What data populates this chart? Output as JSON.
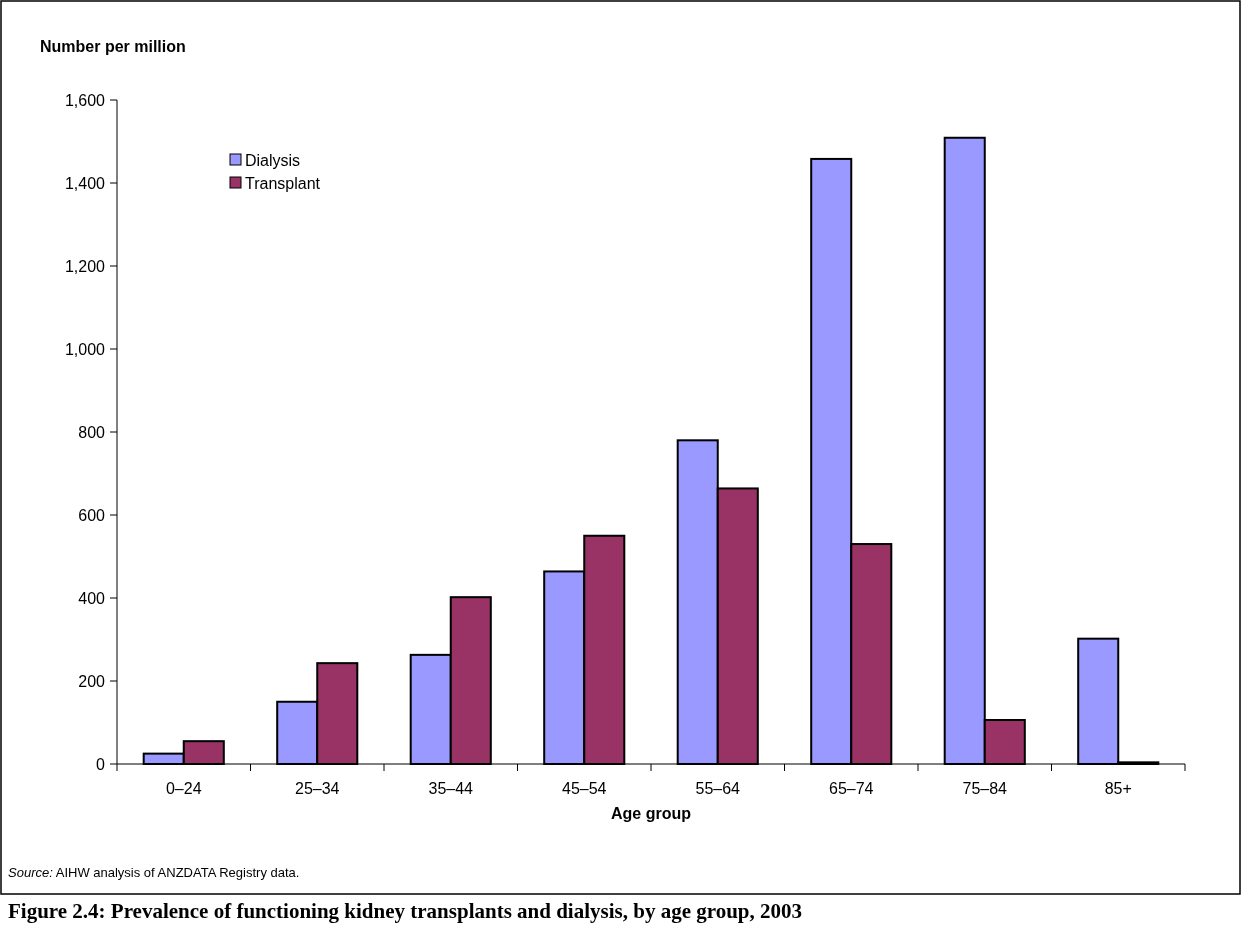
{
  "chart_data": {
    "type": "bar",
    "title": "Figure 2.4: Prevalence of functioning kidney transplants and dialysis, by age group, 2003",
    "ylabel": "Number per million",
    "xlabel": "Age group",
    "annotations": [
      "Source: AIHW analysis of ANZDATA Registry data."
    ],
    "categories": [
      "0–24",
      "25–34",
      "35–44",
      "45–54",
      "55–64",
      "65–74",
      "75–84",
      "85+"
    ],
    "series": [
      {
        "name": "Dialysis",
        "color": "#9999ff",
        "values": [
          25,
          150,
          263,
          464,
          780,
          1458,
          1509,
          302
        ]
      },
      {
        "name": "Transplant",
        "color": "#993366",
        "values": [
          55,
          243,
          402,
          550,
          664,
          530,
          106,
          4
        ]
      }
    ],
    "ylim": [
      0,
      1600
    ],
    "yticks": [
      {
        "value": 0,
        "label": "0"
      },
      {
        "value": 200,
        "label": "200"
      },
      {
        "value": 400,
        "label": "400"
      },
      {
        "value": 600,
        "label": "600"
      },
      {
        "value": 800,
        "label": "800"
      },
      {
        "value": 1000,
        "label": "1,000"
      },
      {
        "value": 1200,
        "label": "1,200"
      },
      {
        "value": 1400,
        "label": "1,400"
      },
      {
        "value": 1600,
        "label": "1,600"
      }
    ],
    "legend": "top left",
    "grid": false
  }
}
